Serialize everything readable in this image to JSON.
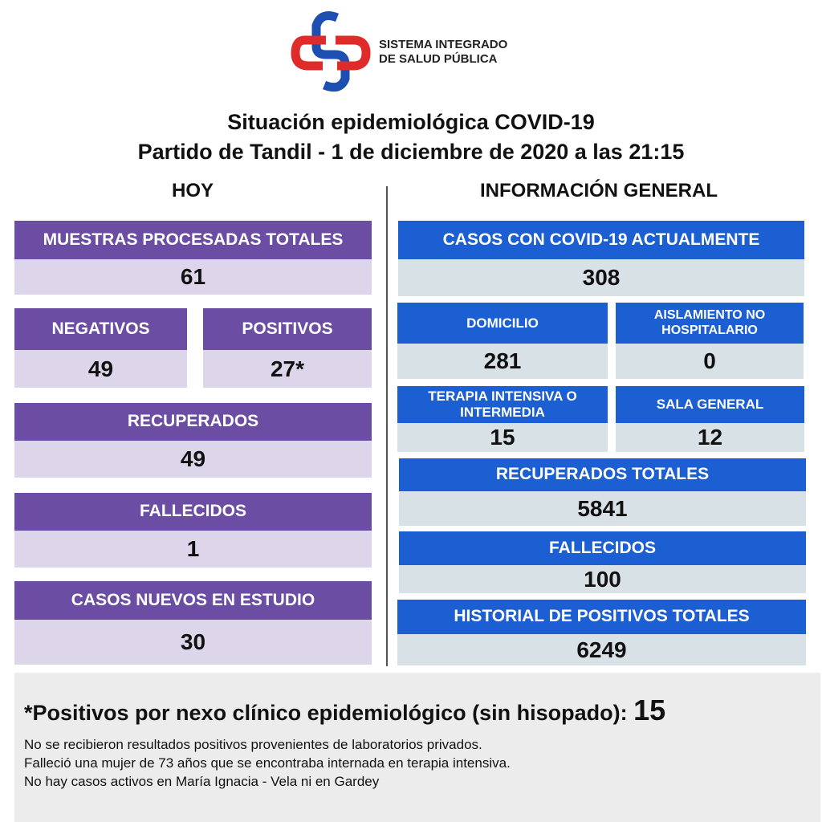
{
  "logo": {
    "line1": "SISTEMA INTEGRADO",
    "line2": "DE SALUD PÚBLICA"
  },
  "header": {
    "title": "Situación epidemiológica COVID-19",
    "subtitle": "Partido de Tandil - 1 de diciembre de 2020 a las 21:15"
  },
  "hoy": {
    "title": "HOY",
    "boxes": [
      {
        "label": "MUESTRAS PROCESADAS TOTALES",
        "value": 61
      },
      {
        "label": "NEGATIVOS",
        "value": 49
      },
      {
        "label": "POSITIVOS",
        "value": "27*"
      },
      {
        "label": "RECUPERADOS",
        "value": 49
      },
      {
        "label": "FALLECIDOS",
        "value": 1
      },
      {
        "label": "CASOS NUEVOS EN ESTUDIO",
        "value": 30
      }
    ]
  },
  "general": {
    "title": "INFORMACIÓN GENERAL",
    "boxes": [
      {
        "label": "CASOS CON COVID-19 ACTUALMENTE",
        "value": 308
      },
      {
        "label": "DOMICILIO",
        "value": 281
      },
      {
        "label": "AISLAMIENTO NO HOSPITALARIO",
        "value": 0
      },
      {
        "label": "TERAPIA INTENSIVA O INTERMEDIA",
        "value": 15
      },
      {
        "label": "SALA GENERAL",
        "value": 12
      },
      {
        "label": "RECUPERADOS TOTALES",
        "value": 5841
      },
      {
        "label": "FALLECIDOS",
        "value": 100
      },
      {
        "label": "HISTORIAL DE POSITIVOS TOTALES",
        "value": 6249
      }
    ]
  },
  "footer": {
    "note_label": "*Positivos por nexo clínico epidemiológico (sin hisopado):",
    "note_value": 15,
    "lines": [
      "No se recibieron resultados positivos provenientes de laboratorios privados.",
      "Falleció una mujer de 73 años que se encontraba internada en terapia intensiva.",
      "No hay casos activos en María Ignacia - Vela ni en Gardey"
    ]
  }
}
